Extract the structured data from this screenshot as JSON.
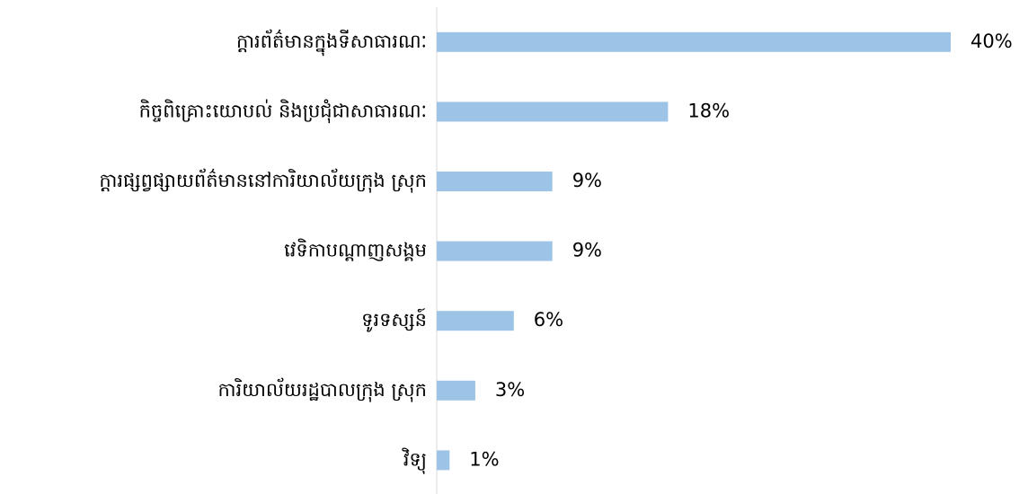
{
  "chart_data": {
    "type": "bar",
    "orientation": "horizontal",
    "categories": [
      "ក្តារព័ត៌មានក្នុងទីសាធារណៈ",
      "កិច្ចពិគ្រោះយោបល់ និងប្រជុំជាសាធារណៈ",
      "ក្តារផ្សព្វផ្សាយព័ត៌មាននៅការិយាល័យក្រុង ស្រុក",
      "វេទិកាបណ្តាញសង្គម",
      "ទូរទស្សន៍",
      "ការិយាល័យរដ្ឋបាលក្រុង ស្រុក",
      "វិទ្យុ"
    ],
    "values": [
      40,
      18,
      9,
      9,
      6,
      3,
      1
    ],
    "value_labels": [
      "40%",
      "18%",
      "9%",
      "9%",
      "6%",
      "3%",
      "1%"
    ],
    "color": "#9dc3e6"
  }
}
